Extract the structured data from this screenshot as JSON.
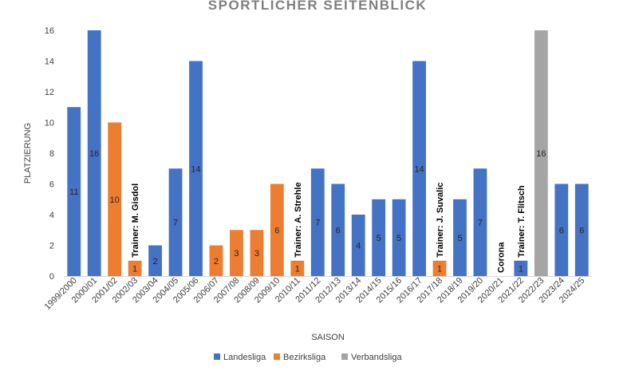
{
  "chart_data": {
    "type": "bar",
    "title": "SPORTLICHER SEITENBLICK",
    "xlabel": "SAISON",
    "ylabel": "PLATZIERUNG",
    "ylim": [
      0,
      16
    ],
    "yticks": [
      "0",
      "2",
      "4",
      "6",
      "8",
      "10",
      "12",
      "14",
      "16"
    ],
    "grid": false,
    "legend_position": "bottom",
    "series": [
      {
        "name": "Landesliga",
        "color": "#4472c4"
      },
      {
        "name": "Bezirksliga",
        "color": "#ed7d31"
      },
      {
        "name": "Verbandsliga",
        "color": "#a5a5a5"
      }
    ],
    "categories": [
      "1999/2000",
      "2000/01",
      "2001/02",
      "2002/03",
      "2003/04",
      "2004/05",
      "2005/06",
      "2006/07",
      "2007/08",
      "2008/09",
      "2009/10",
      "2010/11",
      "2011/12",
      "2012/13",
      "2013/14",
      "2014/15",
      "2015/16",
      "2016/17",
      "2017/18",
      "2018/19",
      "2019/20",
      "2020/21",
      "2021/22",
      "2022/23",
      "2023/24",
      "2024/25"
    ],
    "values": [
      11,
      16,
      10,
      1,
      2,
      7,
      14,
      2,
      3,
      3,
      6,
      1,
      7,
      6,
      4,
      5,
      5,
      14,
      1,
      5,
      7,
      null,
      1,
      16,
      6,
      6
    ],
    "data_labels": [
      "11",
      "16",
      "10",
      "1",
      "2",
      "7",
      "14",
      "2",
      "3",
      "3",
      "6",
      "1",
      "7",
      "6",
      "4",
      "5",
      "5",
      "14",
      "1",
      "5",
      "7",
      "",
      "1",
      "16",
      "6",
      "6"
    ],
    "league": [
      "Landesliga",
      "Landesliga",
      "Bezirksliga",
      "Bezirksliga",
      "Landesliga",
      "Landesliga",
      "Landesliga",
      "Bezirksliga",
      "Bezirksliga",
      "Bezirksliga",
      "Bezirksliga",
      "Bezirksliga",
      "Landesliga",
      "Landesliga",
      "Landesliga",
      "Landesliga",
      "Landesliga",
      "Landesliga",
      "Bezirksliga",
      "Landesliga",
      "Landesliga",
      null,
      "Landesliga",
      "Verbandsliga",
      "Landesliga",
      "Landesliga"
    ],
    "annotations": [
      {
        "category": "2002/03",
        "text": "Trainer: M. Gisdol"
      },
      {
        "category": "2010/11",
        "text": "Trainer: A. Strehle"
      },
      {
        "category": "2017/18",
        "text": "Trainer: J. Suvalic"
      },
      {
        "category": "2020/21",
        "text": "Corona"
      },
      {
        "category": "2021/22",
        "text": "Trainer: T. Flitsch"
      }
    ]
  }
}
